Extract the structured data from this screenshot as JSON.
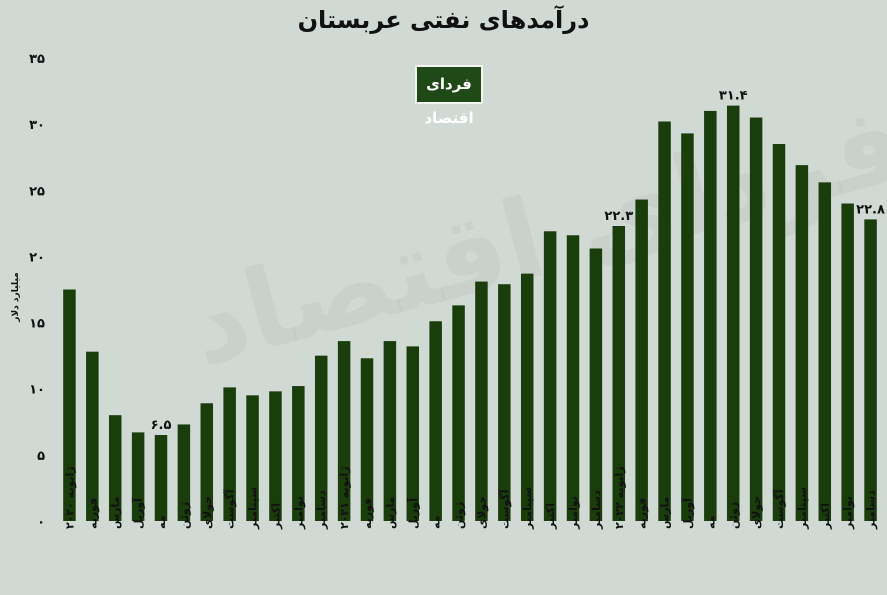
{
  "title": "درآمدهای نفتی عربستان",
  "logo_text": "فردای اقتصاد",
  "watermark_text": "فردای اقتصاد",
  "colors": {
    "bar": "#1a3d0c",
    "background": "#d1d9d5"
  },
  "chart_data": {
    "type": "bar",
    "title": "درآمدهای نفتی عربستان",
    "ylabel": "میلیارد دلار",
    "xlabel": "",
    "ylim": [
      0,
      35
    ],
    "yticks": [
      0,
      5,
      10,
      15,
      20,
      25,
      30,
      35
    ],
    "grid": false,
    "categories": [
      "ژانویه ۲۰۲۰",
      "فوریه",
      "مارس",
      "آوریل",
      "مه",
      "ژوئن",
      "جولای",
      "آگوست",
      "سپتامبر",
      "اکتبر",
      "نوامبر",
      "دسامبر",
      "ژانویه ۲۰۲۱",
      "فوریه",
      "مارس",
      "آوریل",
      "مه",
      "ژوئن",
      "جولای",
      "آگوست",
      "سپتامبر",
      "اکتبر",
      "نوامبر",
      "دسامبر",
      "ژانویه ۲۰۲۲",
      "فوریه",
      "مارس",
      "آوریل",
      "مه",
      "ژوئن",
      "جولای",
      "آگوست",
      "سپتامبر",
      "اکتبر",
      "نوامبر",
      "دسامبر"
    ],
    "values": [
      17.5,
      12.8,
      8.0,
      6.7,
      6.5,
      7.3,
      8.9,
      10.1,
      9.5,
      9.8,
      10.2,
      12.5,
      13.6,
      12.3,
      13.6,
      13.2,
      15.1,
      16.3,
      18.1,
      17.9,
      18.7,
      21.9,
      21.6,
      20.6,
      22.3,
      24.3,
      30.2,
      29.3,
      31.0,
      31.4,
      30.5,
      28.5,
      26.9,
      25.6,
      24.0,
      22.8
    ],
    "data_labels": [
      {
        "index": 4,
        "text": "۶.۵"
      },
      {
        "index": 24,
        "text": "۲۲.۳"
      },
      {
        "index": 29,
        "text": "۳۱.۴"
      },
      {
        "index": 35,
        "text": "۲۲.۸"
      }
    ]
  }
}
